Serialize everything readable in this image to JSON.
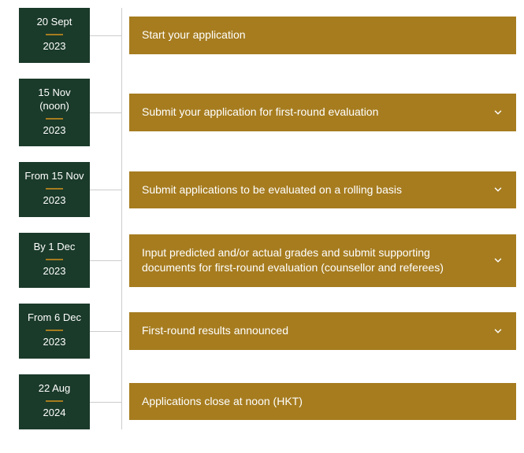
{
  "colors": {
    "date_box_bg": "#1a3a2a",
    "date_box_text": "#ffffff",
    "date_divider": "#a67c1f",
    "content_bg": "#a67c1f",
    "content_text": "#ffffff",
    "line": "#cccccc",
    "page_bg": "#ffffff"
  },
  "timeline": [
    {
      "date_top": "20 Sept",
      "year": "2023",
      "text": "Start your application",
      "expandable": false
    },
    {
      "date_top": "15 Nov (noon)",
      "year": "2023",
      "text": "Submit your application for first-round evaluation",
      "expandable": true
    },
    {
      "date_top": "From 15 Nov",
      "year": "2023",
      "text": "Submit applications to be evaluated on a rolling basis",
      "expandable": true
    },
    {
      "date_top": "By 1 Dec",
      "year": "2023",
      "text": "Input predicted and/or actual grades and submit supporting documents for first-round evaluation (counsellor and referees)",
      "expandable": true,
      "tall": true
    },
    {
      "date_top": "From 6 Dec",
      "year": "2023",
      "text": "First-round results announced",
      "expandable": true
    },
    {
      "date_top": "22 Aug",
      "year": "2024",
      "text": "Applications close at noon (HKT)",
      "expandable": false
    }
  ]
}
